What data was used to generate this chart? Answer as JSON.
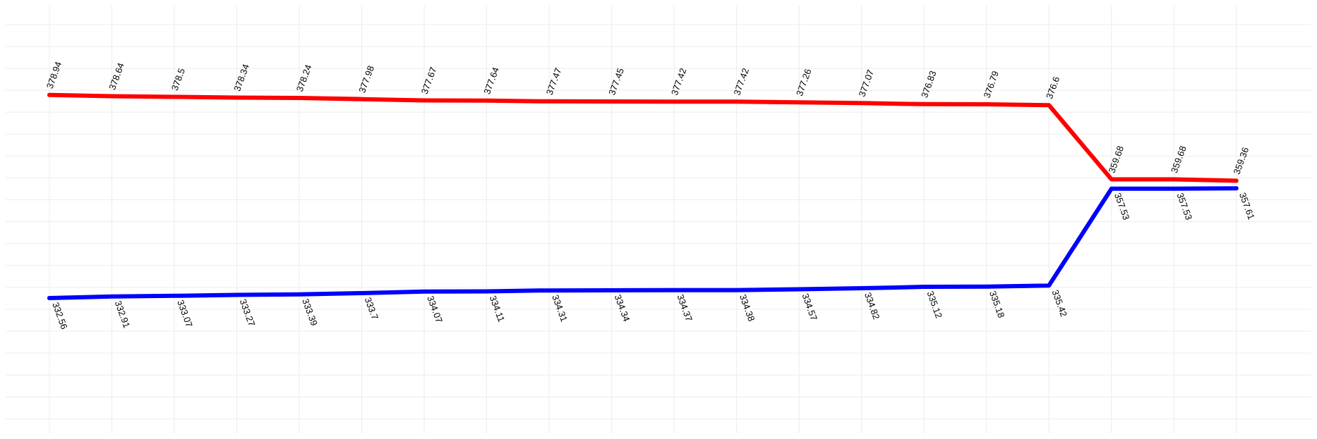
{
  "chart_data": {
    "type": "line",
    "categories": [
      null,
      null,
      null,
      null,
      null,
      null,
      null,
      null,
      null,
      null,
      null,
      null,
      null,
      null,
      null,
      null,
      null,
      null,
      null,
      null
    ],
    "series": [
      {
        "color": "#ff0000",
        "values": [
          378.94,
          378.64,
          378.5,
          378.34,
          378.24,
          377.98,
          377.67,
          377.64,
          377.47,
          377.45,
          377.42,
          377.42,
          377.26,
          377.07,
          376.83,
          376.79,
          376.6,
          359.68,
          359.68,
          359.36
        ]
      },
      {
        "color": "#0000ff",
        "values": [
          332.56,
          332.91,
          333.07,
          333.27,
          333.39,
          333.7,
          334.07,
          334.11,
          334.31,
          334.34,
          334.37,
          334.38,
          334.57,
          334.82,
          335.12,
          335.18,
          335.42,
          357.53,
          357.53,
          357.61
        ]
      }
    ],
    "ylim": [
      302,
      399
    ],
    "yticks": [
      {
        "value": 305,
        "label": null
      },
      {
        "value": 310,
        "label": null
      },
      {
        "value": 315,
        "label": null
      },
      {
        "value": 320,
        "label": null
      },
      {
        "value": 325,
        "label": null
      },
      {
        "value": 330,
        "label": null
      },
      {
        "value": 335,
        "label": null
      },
      {
        "value": 340,
        "label": null
      },
      {
        "value": 345,
        "label": null
      },
      {
        "value": 350,
        "label": null
      },
      {
        "value": 355,
        "label": null
      },
      {
        "value": 360,
        "label": null
      },
      {
        "value": 365,
        "label": null
      },
      {
        "value": 370,
        "label": null
      },
      {
        "value": 375,
        "label": null
      },
      {
        "value": 380,
        "label": null
      },
      {
        "value": 385,
        "label": null
      },
      {
        "value": 390,
        "label": null
      },
      {
        "value": 395,
        "label": null
      }
    ],
    "grid": true,
    "data_labels": true,
    "marker": "none",
    "line_style": "solid"
  }
}
